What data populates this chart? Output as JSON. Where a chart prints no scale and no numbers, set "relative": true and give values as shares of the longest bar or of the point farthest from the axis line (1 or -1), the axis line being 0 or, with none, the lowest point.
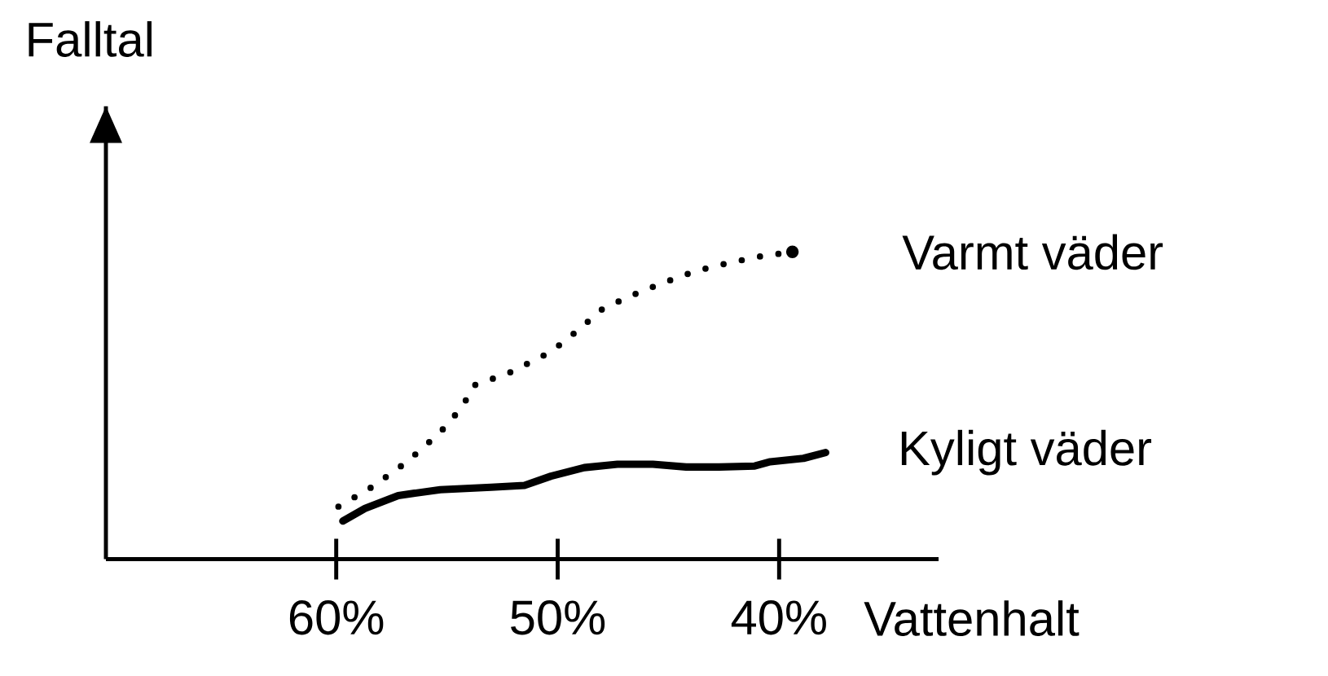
{
  "chart_data": {
    "type": "line",
    "relative": true,
    "xlabel": "Vattenhalt",
    "ylabel": "Falltal",
    "xlim": [
      70.4,
      32.8
    ],
    "xticks": [
      {
        "value": 60,
        "label": "60%"
      },
      {
        "value": 50,
        "label": "50%"
      },
      {
        "value": 40,
        "label": "40%"
      }
    ],
    "series": [
      {
        "name": "Varmt väder",
        "color": "#000000",
        "line_style": "dotted",
        "x": [
          59.9,
          58.4,
          56.8,
          55.3,
          54.3,
          53.8,
          52.2,
          50.3,
          49.1,
          48.0,
          46.8,
          45.4,
          43.8,
          42.3,
          40.8,
          39.4
        ],
        "values": [
          0.171,
          0.234,
          0.317,
          0.413,
          0.496,
          0.565,
          0.606,
          0.675,
          0.744,
          0.813,
          0.854,
          0.895,
          0.937,
          0.964,
          0.986,
          1
        ]
      },
      {
        "name": "Kyligt väder",
        "color": "#000000",
        "line_style": "solid",
        "x": [
          59.7,
          58.7,
          57.2,
          55.3,
          53.0,
          51.5,
          50.3,
          48.8,
          47.3,
          45.7,
          44.2,
          42.7,
          41.1,
          40.4,
          38.9,
          37.9
        ],
        "values": [
          0.124,
          0.165,
          0.207,
          0.226,
          0.234,
          0.24,
          0.27,
          0.298,
          0.309,
          0.309,
          0.3,
          0.3,
          0.303,
          0.317,
          0.328,
          0.347
        ]
      }
    ]
  }
}
